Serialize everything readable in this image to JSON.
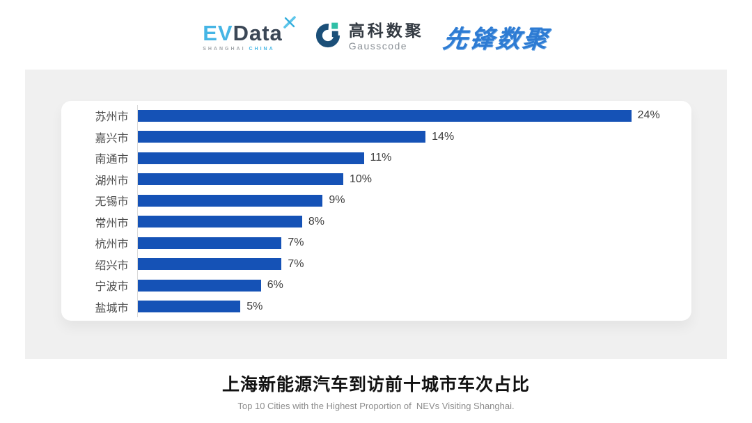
{
  "header": {
    "evdata_logo": {
      "ev": "EV",
      "data": "Data",
      "mark_icon": "x-spark-icon",
      "subtext_left": "SHANGHAI",
      "subtext_right": "CHINA",
      "ev_color": "#45b5e5",
      "data_color": "#3b4756"
    },
    "gausscode_logo": {
      "mark_icon": "g-ring-icon",
      "cn": "高科数聚",
      "en": "Gausscode",
      "mark_color": "#1b4f78",
      "accent_color": "#2fbfa6"
    },
    "xianfeng_logo": {
      "text": "先锋数聚",
      "color": "#2d7bd3"
    }
  },
  "chart_data": {
    "type": "bar",
    "orientation": "horizontal",
    "title": "上海新能源汽车到访前十城市车次占比",
    "subtitle": "Top 10 Cities with the Highest Proportion of  NEVs Visiting Shanghai.",
    "categories": [
      "苏州市",
      "嘉兴市",
      "南通市",
      "湖州市",
      "无锡市",
      "常州市",
      "杭州市",
      "绍兴市",
      "宁波市",
      "盐城市"
    ],
    "values": [
      24,
      14,
      11,
      10,
      9,
      8,
      7,
      7,
      6,
      5
    ],
    "value_labels": [
      "24%",
      "14%",
      "11%",
      "10%",
      "9%",
      "8%",
      "7%",
      "7%",
      "6%",
      "5%"
    ],
    "unit": "%",
    "xlim": [
      0,
      26.5
    ],
    "grid": false,
    "legend": false,
    "bar_color": "#1552b6",
    "axis_line_color": "#d9d9d9",
    "category_label_color": "#4d4d4d",
    "value_label_color": "#3d3d3d"
  },
  "footer": {
    "title": "上海新能源汽车到访前十城市车次占比",
    "subtitle": "Top 10 Cities with the Highest Proportion of  NEVs Visiting Shanghai."
  }
}
